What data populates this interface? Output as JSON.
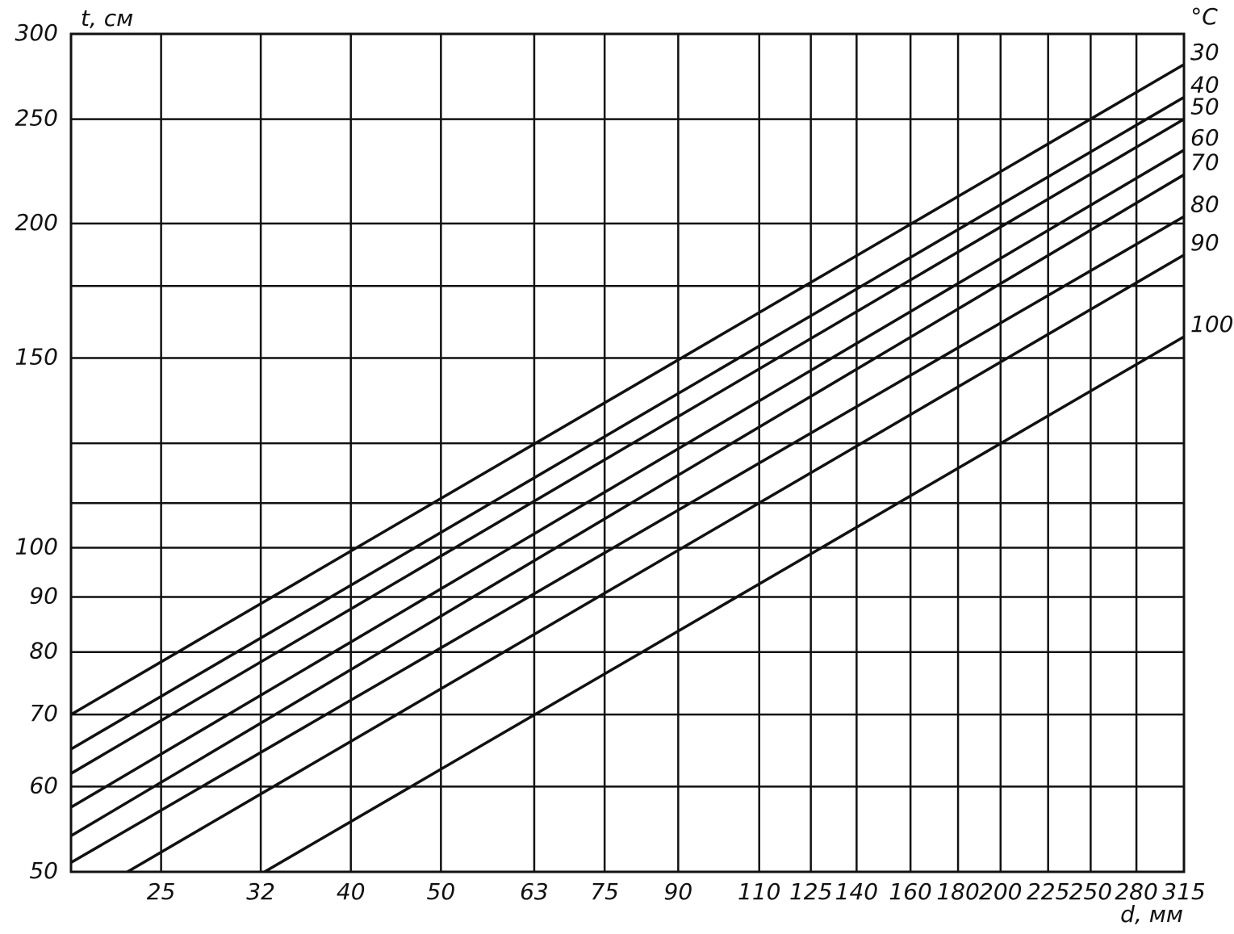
{
  "chart_data": {
    "type": "line",
    "x_label": "d, мм",
    "y_label": "t, см",
    "legend_title": "°C",
    "xscale": "log",
    "yscale": "log",
    "grid": true,
    "xlim": [
      20,
      315
    ],
    "ylim": [
      50,
      300
    ],
    "xticks": [
      25,
      32,
      40,
      50,
      63,
      75,
      90,
      110,
      125,
      140,
      160,
      180,
      200,
      225,
      250,
      280,
      315
    ],
    "yticks": [
      50,
      60,
      70,
      80,
      90,
      100,
      {
        "value": 110,
        "label": null
      },
      {
        "value": 125,
        "label": null
      },
      150,
      {
        "value": 175,
        "label": null
      },
      200,
      250,
      300
    ],
    "series": [
      {
        "name": "30",
        "color": "#111111",
        "x": [
          20,
          315
        ],
        "values": [
          70,
          281
        ]
      },
      {
        "name": "40",
        "color": "#111111",
        "x": [
          20,
          315
        ],
        "values": [
          65,
          262
        ]
      },
      {
        "name": "50",
        "color": "#111111",
        "x": [
          20,
          315
        ],
        "values": [
          61.7,
          250
        ]
      },
      {
        "name": "60",
        "color": "#111111",
        "x": [
          20,
          315
        ],
        "values": [
          57.4,
          234
        ]
      },
      {
        "name": "70",
        "color": "#111111",
        "x": [
          20,
          315
        ],
        "values": [
          54,
          222
        ]
      },
      {
        "name": "80",
        "color": "#111111",
        "x": [
          20,
          315
        ],
        "values": [
          51,
          203
        ]
      },
      {
        "name": "90",
        "color": "#111111",
        "x": [
          23,
          315
        ],
        "values": [
          50,
          187
        ]
      },
      {
        "name": "100",
        "color": "#111111",
        "x": [
          32.3,
          315
        ],
        "values": [
          50,
          157
        ]
      }
    ]
  }
}
